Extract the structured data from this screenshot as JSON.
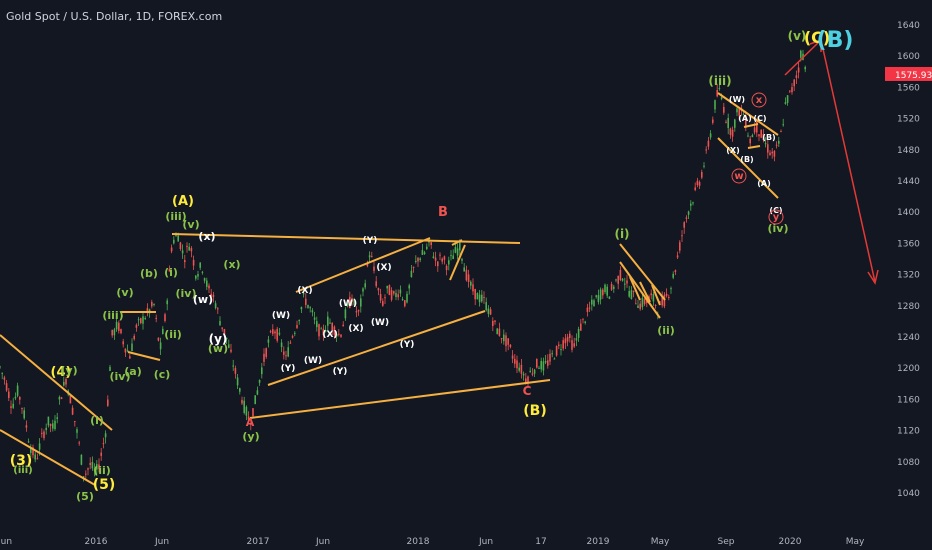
{
  "header": {
    "title": "Gold Spot / U.S. Dollar, 1D, FOREX.com"
  },
  "colors": {
    "background": "#131722",
    "up": "#26a69a",
    "down": "#ef5350",
    "green_candle": "#4caf50",
    "trendline": "#f5b041",
    "green_label": "#8bc34a",
    "yellow_label": "#ffeb3b",
    "white_label": "#ffffff",
    "red_label": "#ef5350",
    "cyan_label": "#4dd0e1",
    "price_tag": "#f23645",
    "axis_text": "#b2b5be"
  },
  "chart_data": {
    "type": "candlestick",
    "title": "Gold Spot / U.S. Dollar, 1D, FOREX.com",
    "y_ticks": [
      1040,
      1080,
      1120,
      1160,
      1200,
      1240,
      1280,
      1320,
      1360,
      1400,
      1440,
      1480,
      1520,
      1560,
      1600,
      1640
    ],
    "x_ticks": [
      "Jun",
      "2016",
      "Jun",
      "2017",
      "Jun",
      "2018",
      "Jun",
      "17",
      "2019",
      "May",
      "Sep",
      "2020",
      "May"
    ],
    "ylim": [
      1010,
      1660
    ],
    "current_price": "1575.93",
    "price_path": [
      [
        0,
        1200
      ],
      [
        6,
        1180
      ],
      [
        12,
        1150
      ],
      [
        18,
        1170
      ],
      [
        24,
        1140
      ],
      [
        30,
        1100
      ],
      [
        36,
        1080
      ],
      [
        42,
        1110
      ],
      [
        48,
        1130
      ],
      [
        54,
        1120
      ],
      [
        60,
        1160
      ],
      [
        66,
        1185
      ],
      [
        72,
        1150
      ],
      [
        78,
        1110
      ],
      [
        84,
        1060
      ],
      [
        90,
        1075
      ],
      [
        96,
        1065
      ],
      [
        100,
        1080
      ],
      [
        106,
        1120
      ],
      [
        112,
        1240
      ],
      [
        118,
        1255
      ],
      [
        124,
        1230
      ],
      [
        130,
        1215
      ],
      [
        136,
        1250
      ],
      [
        142,
        1260
      ],
      [
        148,
        1270
      ],
      [
        154,
        1280
      ],
      [
        160,
        1220
      ],
      [
        166,
        1270
      ],
      [
        172,
        1360
      ],
      [
        178,
        1370
      ],
      [
        184,
        1340
      ],
      [
        190,
        1360
      ],
      [
        196,
        1320
      ],
      [
        202,
        1330
      ],
      [
        208,
        1300
      ],
      [
        214,
        1290
      ],
      [
        220,
        1260
      ],
      [
        226,
        1240
      ],
      [
        232,
        1210
      ],
      [
        238,
        1180
      ],
      [
        244,
        1150
      ],
      [
        250,
        1130
      ],
      [
        256,
        1160
      ],
      [
        262,
        1200
      ],
      [
        268,
        1230
      ],
      [
        274,
        1250
      ],
      [
        280,
        1235
      ],
      [
        286,
        1210
      ],
      [
        292,
        1240
      ],
      [
        298,
        1260
      ],
      [
        304,
        1290
      ],
      [
        310,
        1275
      ],
      [
        316,
        1255
      ],
      [
        322,
        1240
      ],
      [
        328,
        1260
      ],
      [
        334,
        1250
      ],
      [
        340,
        1240
      ],
      [
        346,
        1270
      ],
      [
        352,
        1290
      ],
      [
        358,
        1265
      ],
      [
        364,
        1300
      ],
      [
        370,
        1350
      ],
      [
        376,
        1310
      ],
      [
        382,
        1280
      ],
      [
        388,
        1300
      ],
      [
        394,
        1290
      ],
      [
        400,
        1300
      ],
      [
        406,
        1280
      ],
      [
        412,
        1320
      ],
      [
        418,
        1340
      ],
      [
        424,
        1345
      ],
      [
        430,
        1360
      ],
      [
        436,
        1335
      ],
      [
        442,
        1340
      ],
      [
        448,
        1330
      ],
      [
        454,
        1345
      ],
      [
        460,
        1355
      ],
      [
        466,
        1320
      ],
      [
        472,
        1300
      ],
      [
        478,
        1290
      ],
      [
        484,
        1285
      ],
      [
        490,
        1270
      ],
      [
        496,
        1250
      ],
      [
        502,
        1240
      ],
      [
        508,
        1230
      ],
      [
        514,
        1210
      ],
      [
        520,
        1200
      ],
      [
        526,
        1185
      ],
      [
        532,
        1195
      ],
      [
        538,
        1205
      ],
      [
        544,
        1200
      ],
      [
        550,
        1210
      ],
      [
        556,
        1220
      ],
      [
        562,
        1230
      ],
      [
        568,
        1240
      ],
      [
        574,
        1225
      ],
      [
        580,
        1250
      ],
      [
        586,
        1265
      ],
      [
        592,
        1280
      ],
      [
        598,
        1290
      ],
      [
        604,
        1300
      ],
      [
        610,
        1295
      ],
      [
        616,
        1310
      ],
      [
        622,
        1320
      ],
      [
        628,
        1300
      ],
      [
        634,
        1290
      ],
      [
        640,
        1280
      ],
      [
        646,
        1285
      ],
      [
        652,
        1290
      ],
      [
        658,
        1275
      ],
      [
        664,
        1285
      ],
      [
        670,
        1300
      ],
      [
        676,
        1330
      ],
      [
        682,
        1370
      ],
      [
        688,
        1400
      ],
      [
        694,
        1420
      ],
      [
        700,
        1440
      ],
      [
        706,
        1470
      ],
      [
        712,
        1510
      ],
      [
        716,
        1545
      ],
      [
        720,
        1555
      ],
      [
        726,
        1520
      ],
      [
        732,
        1500
      ],
      [
        738,
        1530
      ],
      [
        744,
        1525
      ],
      [
        750,
        1490
      ],
      [
        756,
        1510
      ],
      [
        762,
        1495
      ],
      [
        768,
        1480
      ],
      [
        774,
        1470
      ],
      [
        780,
        1490
      ],
      [
        786,
        1540
      ],
      [
        792,
        1555
      ],
      [
        798,
        1580
      ],
      [
        802,
        1610
      ],
      [
        806,
        1575
      ]
    ]
  },
  "labels": {
    "A": "(A)",
    "iii_1": "(iii)",
    "v_1": "(v)",
    "v_2": "(v)",
    "b": "(b)",
    "i_1": "(i)",
    "iii_2": "(iii)",
    "iv_1": "(iv)",
    "a": "(a)",
    "c": "(c)",
    "ii_1": "(ii)",
    "iv_2": "(iv)",
    "x_1": "(x)",
    "x_2": "(x)",
    "w": "(w)",
    "y": "(y)",
    "w2": "(w)",
    "4": "(4)",
    "4y": "(y)",
    "5": "(5)",
    "5g": "(5)",
    "3": "(3)",
    "iii_3": "(iii)",
    "i_2": "(i)",
    "ii_2": "(ii)",
    "y_low": "(y)",
    "A_red": "A",
    "W_1": "(W)",
    "X_1": "(X)",
    "Y_1": "(Y)",
    "W_2": "(W)",
    "X_2": "(X)",
    "Y_2": "(Y)",
    "W_3": "(W)",
    "X_3": "(X)",
    "Y_3": "(Y)",
    "W_4": "(W)",
    "X_4": "(X)",
    "Y_4": "(Y)",
    "B_red": "B",
    "B_yel": "(B)",
    "C_red": "C",
    "i_g": "(i)",
    "ii_g": "(ii)",
    "iii_g": "(iii)",
    "iv_g": "(iv)",
    "v_g": "(v)",
    "C_top": "(C)",
    "B_top": "(B)",
    "wx_1": "(W)",
    "wx_2": "(A)",
    "wx_3": "(C)",
    "wx_4": "(B)",
    "wx_5": "(B)",
    "wx_6": "(A)",
    "wx_7": "(C)",
    "wx_8": "(X)",
    "w_red": "w",
    "x_red": "x",
    "y_red": "y"
  }
}
